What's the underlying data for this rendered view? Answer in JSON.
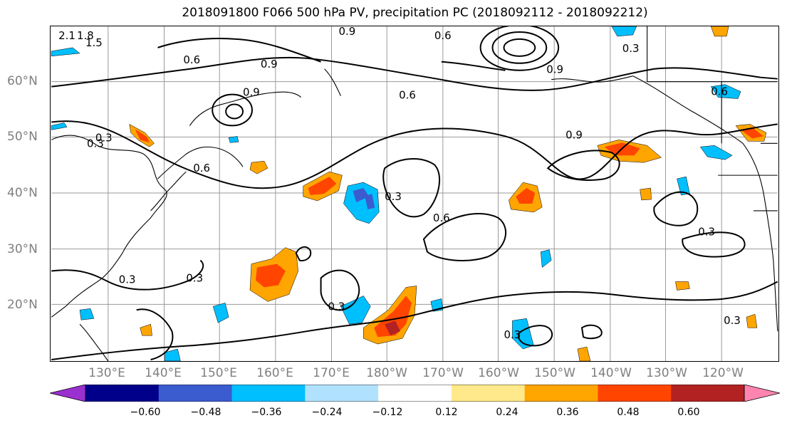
{
  "title": "2018091800 F066 500 hPa PV, precipitation PC (2018092112 - 2018092212)",
  "lat_labels": [
    "60°N",
    "50°N",
    "40°N",
    "30°N",
    "20°N"
  ],
  "lon_labels": [
    "130°E",
    "140°E",
    "150°E",
    "160°E",
    "170°E",
    "180°W",
    "170°W",
    "160°W",
    "150°W",
    "140°W",
    "130°W",
    "120°W"
  ],
  "colorbar": {
    "ticks": [
      "−0.60",
      "−0.48",
      "−0.36",
      "−0.24",
      "−0.12",
      "0.12",
      "0.24",
      "0.36",
      "0.48",
      "0.60"
    ],
    "colors": [
      "#9b30d0",
      "#00008b",
      "#3a5ccf",
      "#00bfff",
      "#b0e2ff",
      "#ffffff",
      "#ffe98a",
      "#ffa500",
      "#ff4500",
      "#b22222",
      "#ff85b0"
    ]
  },
  "contour_labels": [
    "0.6",
    "0.9",
    "0.3",
    "1.5",
    "1.8",
    "2.1",
    "0.9",
    "0.6",
    "0.3",
    "0.6",
    "0.9",
    "0.3",
    "0.6",
    "0.3",
    "0.3",
    "0.3",
    "0.3",
    "0.3",
    "0.6",
    "0.3",
    "0.9",
    "0.6",
    "0.9",
    "0.3"
  ]
}
